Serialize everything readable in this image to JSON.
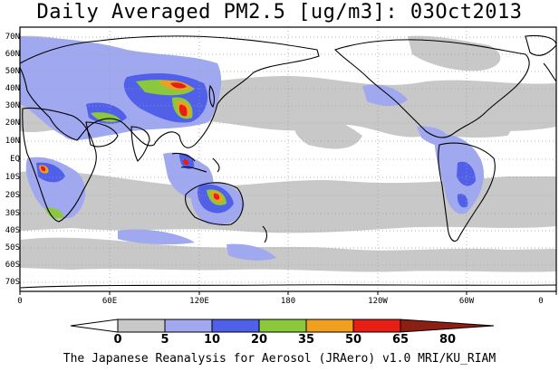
{
  "title": "Daily Averaged PM2.5 [ug/m3]: 03Oct2013",
  "footer": "The Japanese Reanalysis for Aerosol (JRAero) v1.0 MRI/KU_RIAM",
  "lat_labels": [
    "70N",
    "60N",
    "50N",
    "40N",
    "30N",
    "20N",
    "10N",
    "EQ",
    "10S",
    "20S",
    "30S",
    "40S",
    "50S",
    "60S",
    "70S"
  ],
  "lon_labels": [
    "0",
    "60E",
    "120E",
    "180",
    "120W",
    "60W",
    "0"
  ],
  "colorbar": {
    "labels": [
      "0",
      "5",
      "10",
      "20",
      "35",
      "50",
      "65",
      "80"
    ],
    "colors": [
      "#ffffff",
      "#c8c8c8",
      "#a0a8f0",
      "#5060e8",
      "#8cc83c",
      "#f0a01e",
      "#e61e14",
      "#8c1e14"
    ]
  },
  "colors": {
    "land_outline": "#000000",
    "grid": "#a0a0a0"
  }
}
